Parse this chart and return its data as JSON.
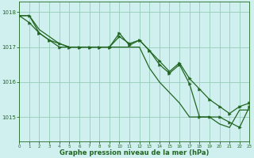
{
  "background_color": "#cff0ee",
  "plot_bg_color": "#cff0ee",
  "grid_color": "#99ccbb",
  "line_color": "#226622",
  "xlabel": "Graphe pression niveau de la mer (hPa)",
  "xlabel_color": "#226622",
  "tick_color": "#226622",
  "ylim": [
    1014.3,
    1018.3
  ],
  "xlim": [
    0,
    23
  ],
  "yticks": [
    1015,
    1016,
    1017,
    1018
  ],
  "xticks": [
    0,
    1,
    2,
    3,
    4,
    5,
    6,
    7,
    8,
    9,
    10,
    11,
    12,
    13,
    14,
    15,
    16,
    17,
    18,
    19,
    20,
    21,
    22,
    23
  ],
  "series1": [
    1017.9,
    1017.9,
    1017.5,
    1017.3,
    1017.1,
    1017.0,
    1017.0,
    1017.0,
    1017.0,
    1017.0,
    1017.0,
    1017.0,
    1017.0,
    1016.4,
    1016.0,
    1015.7,
    1015.4,
    1015.0,
    1015.0,
    1015.0,
    1014.8,
    1014.7,
    1015.2,
    1015.2
  ],
  "series2": [
    1017.9,
    1017.7,
    1017.4,
    1017.2,
    1017.1,
    1017.0,
    1017.0,
    1017.0,
    1017.0,
    1017.0,
    1017.3,
    1017.1,
    1017.2,
    1016.9,
    1016.6,
    1016.3,
    1016.55,
    1016.1,
    1015.8,
    1015.5,
    1015.3,
    1015.1,
    1015.3,
    1015.4
  ],
  "series3": [
    1017.9,
    1017.9,
    1017.4,
    1017.2,
    1017.0,
    1017.0,
    1017.0,
    1017.0,
    1017.0,
    1017.0,
    1017.4,
    1017.05,
    1017.2,
    1016.9,
    1016.5,
    1016.25,
    1016.5,
    1015.95,
    1015.0,
    1015.0,
    1015.0,
    1014.85,
    1014.7,
    1015.3
  ]
}
